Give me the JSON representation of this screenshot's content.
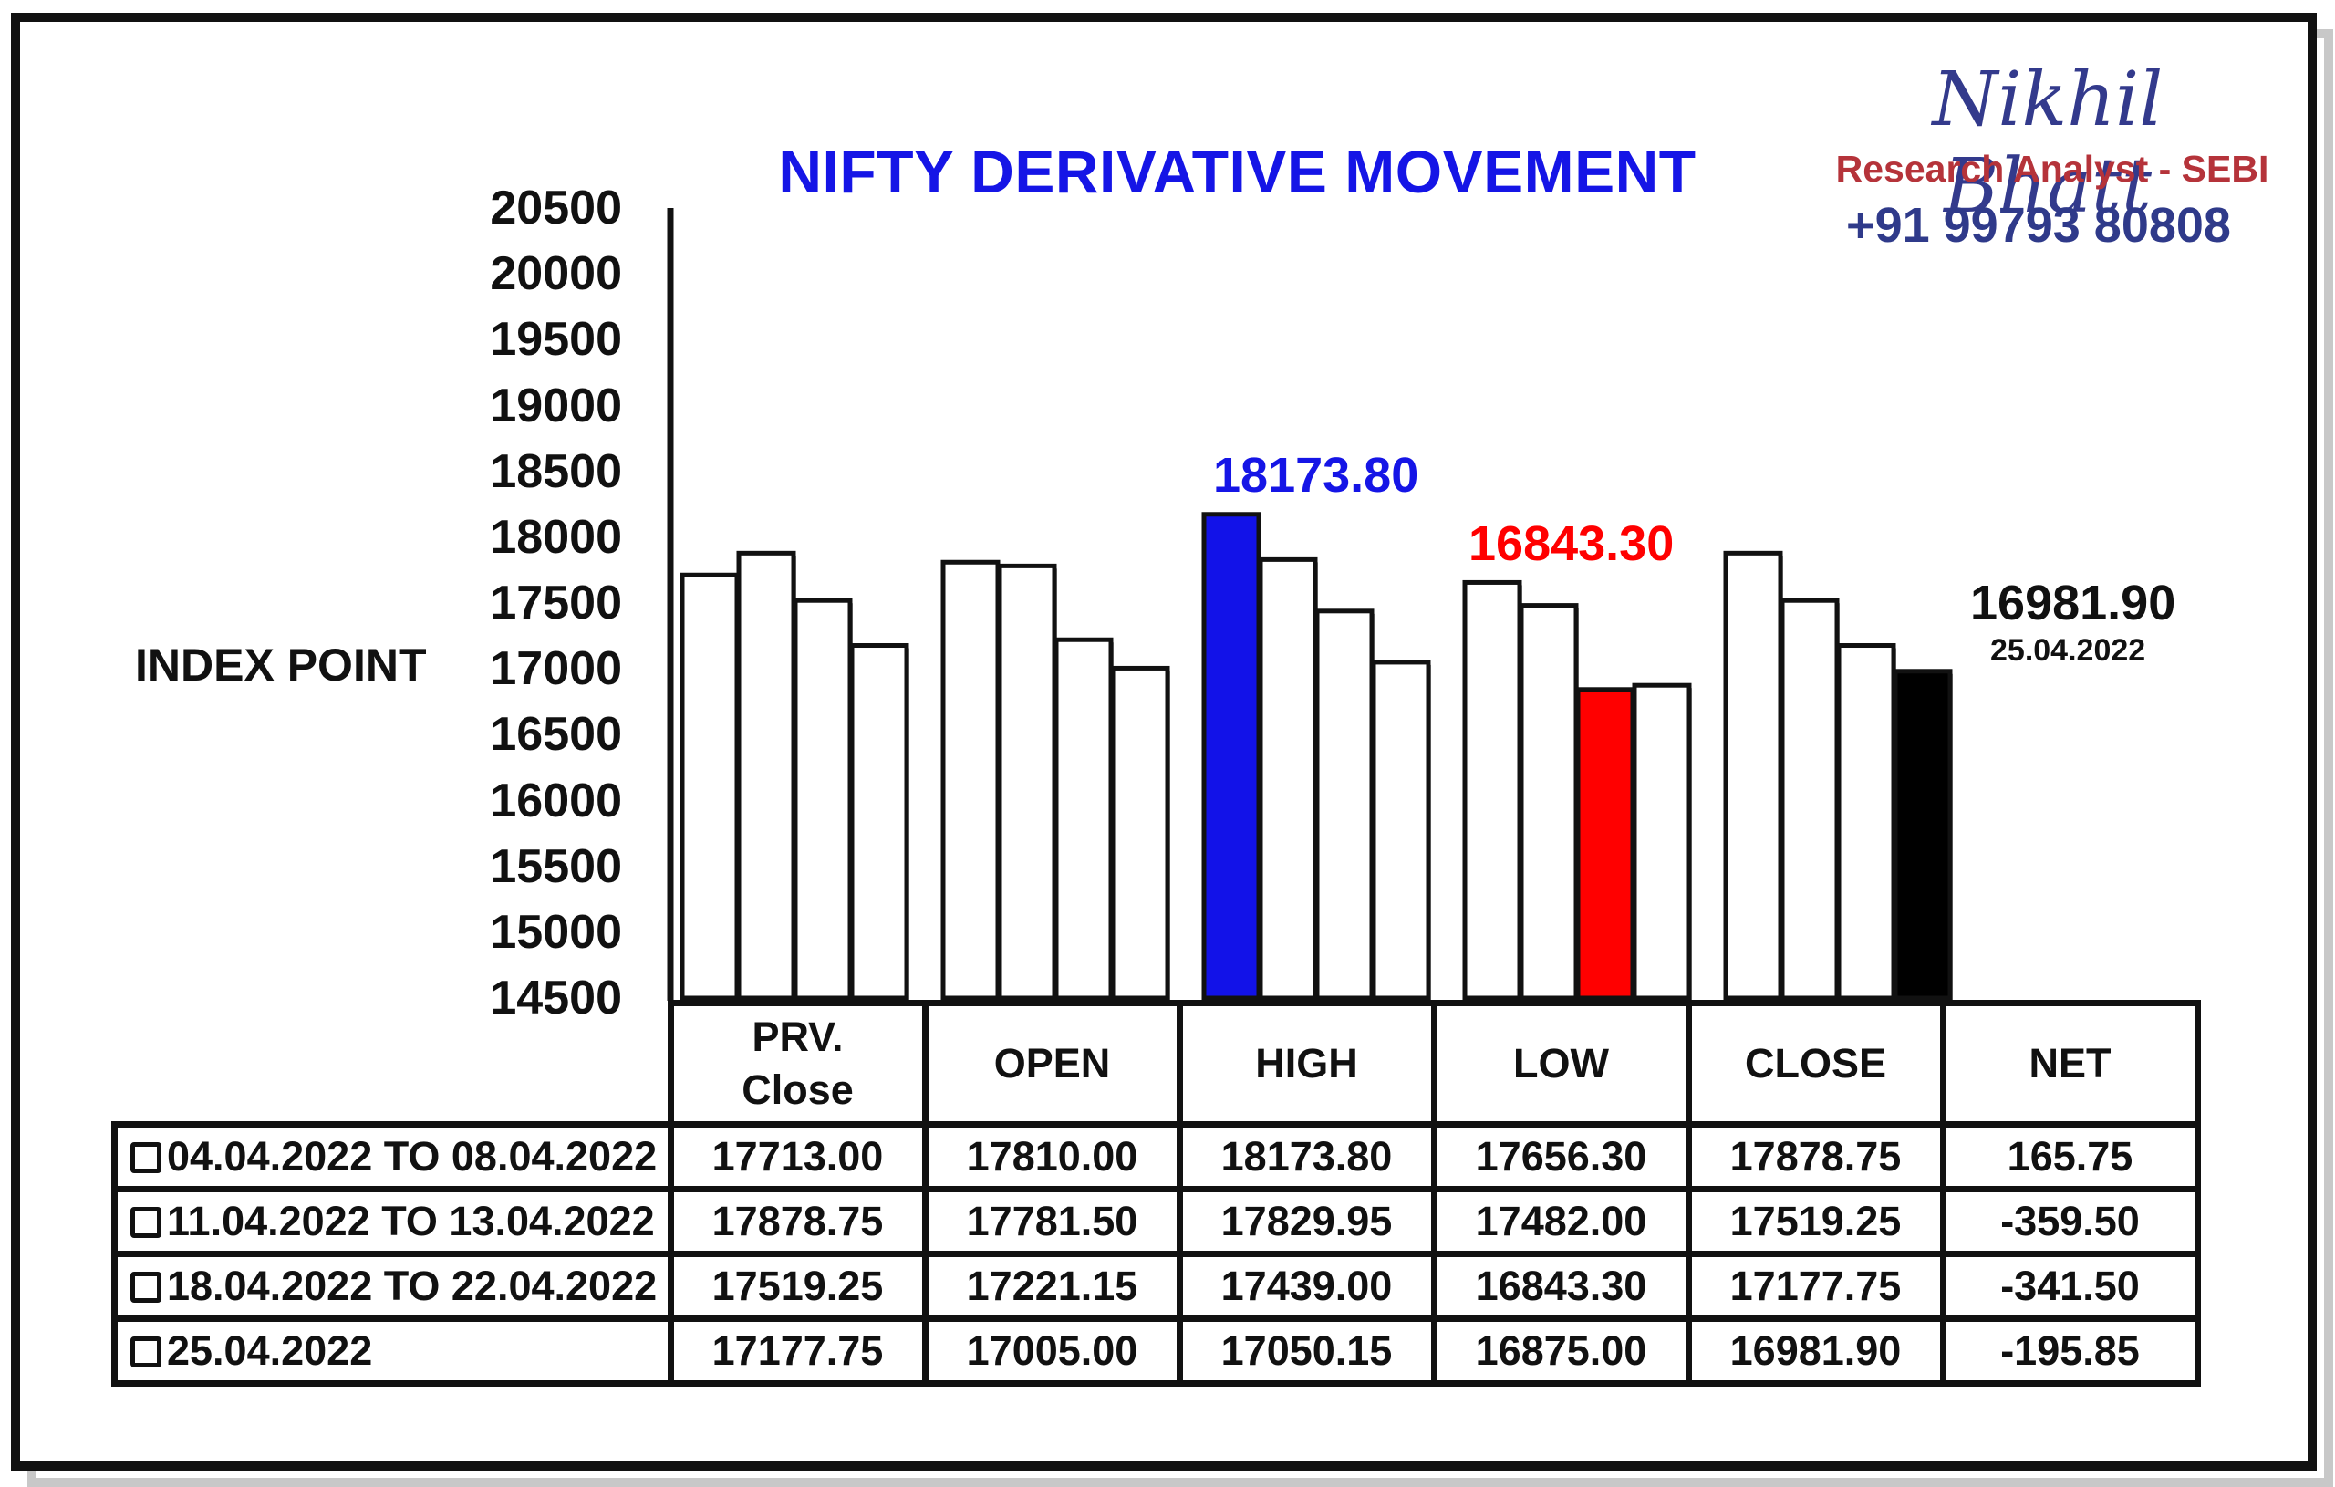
{
  "chart_data": {
    "type": "bar",
    "title": "NIFTY DERIVATIVE MOVEMENT",
    "ylabel": "INDEX POINT",
    "ylim": [
      14500,
      20500
    ],
    "yticks": [
      "20500",
      "20000",
      "19500",
      "19000",
      "18500",
      "18000",
      "17500",
      "17000",
      "16500",
      "16000",
      "15500",
      "15000",
      "14500"
    ],
    "categories": [
      "PRV. Close",
      "OPEN",
      "HIGH",
      "LOW",
      "CLOSE"
    ],
    "series": [
      {
        "name": "04.04.2022 TO 08.04.2022",
        "values": [
          17713.0,
          17810.0,
          18173.8,
          17656.3,
          17878.75
        ]
      },
      {
        "name": "11.04.2022 TO 13.04.2022",
        "values": [
          17878.75,
          17781.5,
          17829.95,
          17482.0,
          17519.25
        ]
      },
      {
        "name": "18.04.2022 TO 22.04.2022",
        "values": [
          17519.25,
          17221.15,
          17439.0,
          16843.3,
          17177.75
        ]
      },
      {
        "name": "25.04.2022",
        "values": [
          17177.75,
          17005.0,
          17050.15,
          16875.0,
          16981.9
        ]
      }
    ],
    "highlights": [
      {
        "category": 2,
        "series": 0,
        "color": "#1212e8"
      },
      {
        "category": 3,
        "series": 2,
        "color": "#ff0000"
      },
      {
        "category": 4,
        "series": 3,
        "color": "#000000"
      }
    ],
    "annotations": {
      "high": {
        "text": "18173.80",
        "color": "#1515e6"
      },
      "low": {
        "text": "16843.30",
        "color": "#ff0000"
      },
      "close": {
        "text": "16981.90",
        "color": "#111111"
      },
      "close_date": "25.04.2022"
    }
  },
  "branding": {
    "name": "Nikhil Bhatt",
    "role": "Research Analyst - SEBI",
    "phone": "+91 99793 80808"
  },
  "table": {
    "headers": [
      "PRV.",
      "Close",
      "OPEN",
      "HIGH",
      "LOW",
      "CLOSE",
      "NET"
    ],
    "rows": [
      {
        "label": "04.04.2022 TO 08.04.2022",
        "cells": [
          "17713.00",
          "17810.00",
          "18173.80",
          "17656.30",
          "17878.75",
          "165.75"
        ]
      },
      {
        "label": "11.04.2022 TO 13.04.2022",
        "cells": [
          "17878.75",
          "17781.50",
          "17829.95",
          "17482.00",
          "17519.25",
          "-359.50"
        ]
      },
      {
        "label": "18.04.2022 TO 22.04.2022",
        "cells": [
          "17519.25",
          "17221.15",
          "17439.00",
          "16843.30",
          "17177.75",
          "-341.50"
        ]
      },
      {
        "label": "25.04.2022",
        "cells": [
          "17177.75",
          "17005.00",
          "17050.15",
          "16875.00",
          "16981.90",
          "-195.85"
        ]
      }
    ]
  }
}
